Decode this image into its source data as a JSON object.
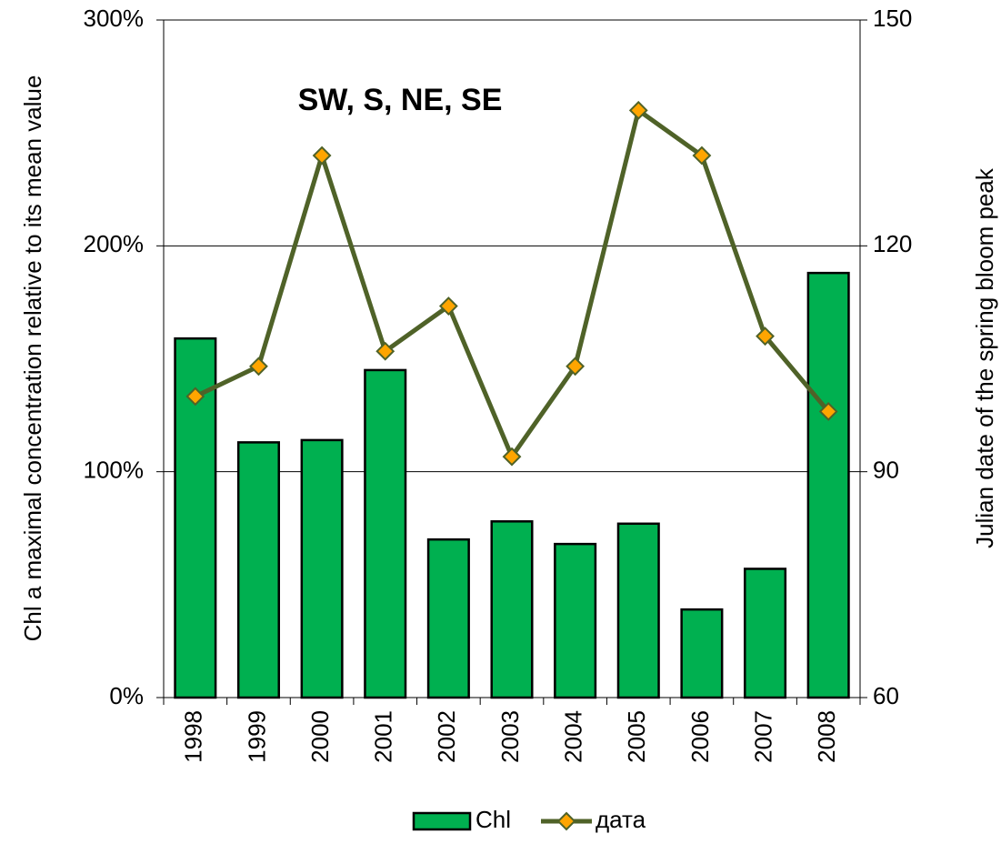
{
  "chart_data": {
    "type": "bar_line",
    "annotation": "SW, S, NE, SE",
    "ylabel": "Chl a maximal concentration relative to its mean value",
    "y2label": "Julian date of the spring bloom peak",
    "categories": [
      "1998",
      "1999",
      "2000",
      "2001",
      "2002",
      "2003",
      "2004",
      "2005",
      "2006",
      "2007",
      "2008"
    ],
    "series": [
      {
        "name": "Chl",
        "type": "bar",
        "color": "#00b050",
        "values": [
          159,
          113,
          114,
          145,
          70,
          78,
          68,
          77,
          39,
          57,
          188
        ]
      },
      {
        "name": "дата",
        "type": "line",
        "axis": "y2",
        "color": "#4f6228",
        "marker_color": "#ffa500",
        "values": [
          100,
          104,
          132,
          106,
          112,
          92,
          104,
          138,
          132,
          108,
          98
        ]
      }
    ],
    "ylim": [
      0,
      300
    ],
    "yticks": [
      {
        "value": 0,
        "label": "0%"
      },
      {
        "value": 100,
        "label": "100%"
      },
      {
        "value": 200,
        "label": "200%"
      },
      {
        "value": 300,
        "label": "300%"
      }
    ],
    "y2lim": [
      60,
      150
    ],
    "y2ticks": [
      60,
      90,
      120,
      150
    ],
    "grid": true
  }
}
